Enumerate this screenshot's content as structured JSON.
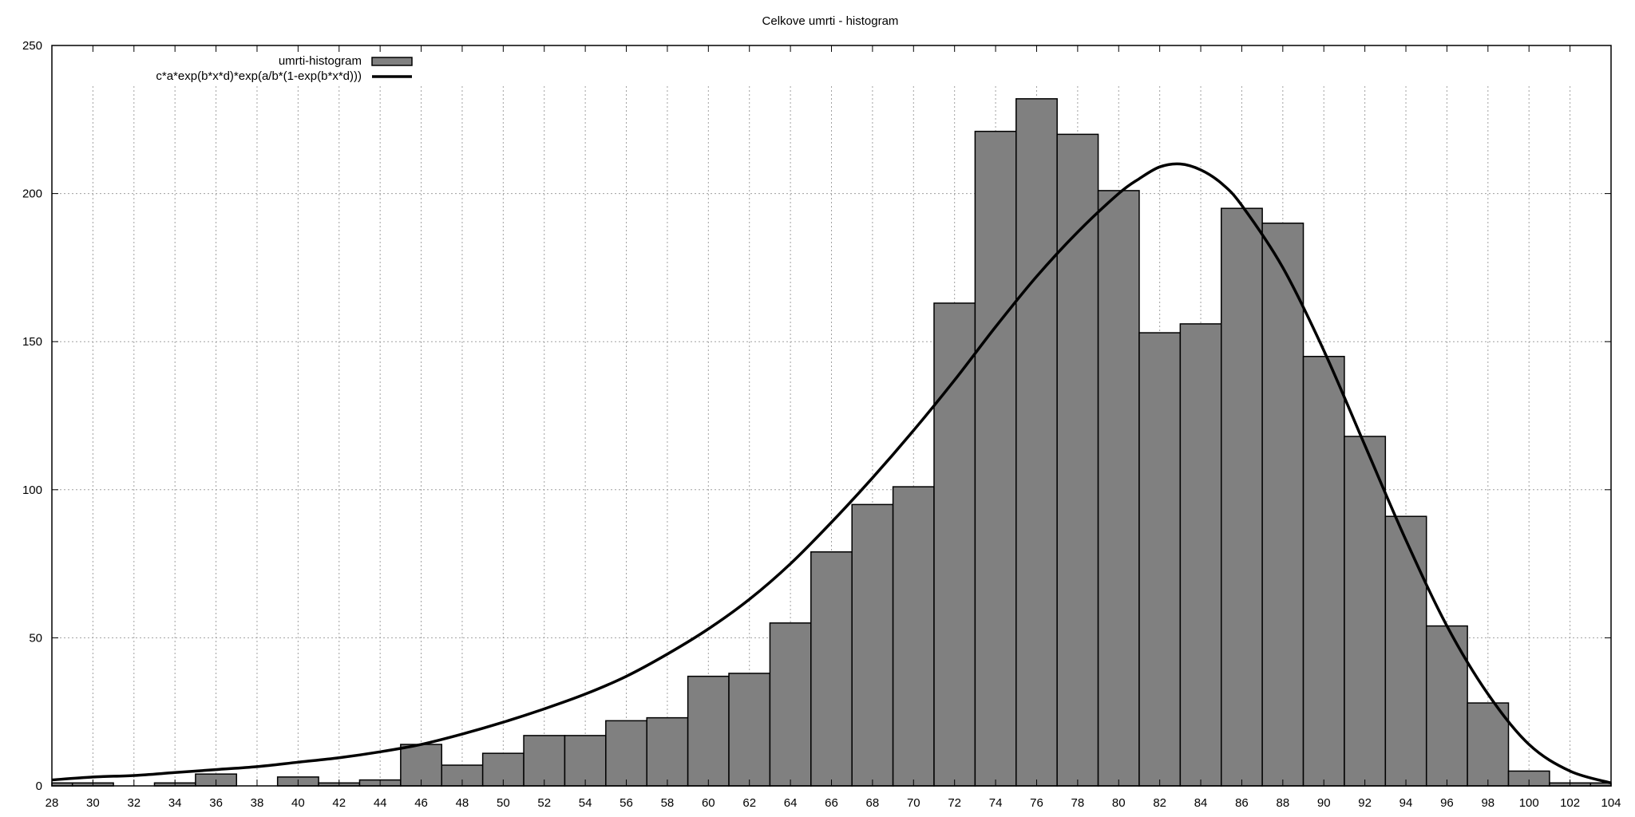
{
  "chart_data": {
    "type": "bar",
    "title": "Celkove umrti - histogram",
    "xlabel": "",
    "ylabel": "",
    "xlim": [
      28,
      104
    ],
    "ylim": [
      0,
      250
    ],
    "grid": true,
    "legend_position": "top-left",
    "x_ticks": [
      "28",
      "30",
      "32",
      "34",
      "36",
      "38",
      "40",
      "42",
      "44",
      "46",
      "48",
      "50",
      "52",
      "54",
      "56",
      "58",
      "60",
      "62",
      "64",
      "66",
      "68",
      "70",
      "72",
      "74",
      "76",
      "78",
      "80",
      "82",
      "84",
      "86",
      "88",
      "90",
      "92",
      "94",
      "96",
      "98",
      "100",
      "102",
      "104"
    ],
    "y_ticks": [
      "0",
      "50",
      "100",
      "150",
      "200",
      "250"
    ],
    "bin_width": 2,
    "series": [
      {
        "name": "umrti-histogram",
        "kind": "histogram",
        "color": "#808080",
        "bins": [
          {
            "center": 28,
            "value": 1
          },
          {
            "center": 30,
            "value": 1
          },
          {
            "center": 32,
            "value": 0
          },
          {
            "center": 34,
            "value": 1
          },
          {
            "center": 36,
            "value": 4
          },
          {
            "center": 38,
            "value": 0
          },
          {
            "center": 40,
            "value": 3
          },
          {
            "center": 42,
            "value": 1
          },
          {
            "center": 44,
            "value": 2
          },
          {
            "center": 46,
            "value": 14
          },
          {
            "center": 48,
            "value": 7
          },
          {
            "center": 50,
            "value": 11
          },
          {
            "center": 52,
            "value": 17
          },
          {
            "center": 54,
            "value": 17
          },
          {
            "center": 56,
            "value": 22
          },
          {
            "center": 58,
            "value": 23
          },
          {
            "center": 60,
            "value": 37
          },
          {
            "center": 62,
            "value": 38
          },
          {
            "center": 64,
            "value": 55
          },
          {
            "center": 66,
            "value": 79
          },
          {
            "center": 68,
            "value": 95
          },
          {
            "center": 70,
            "value": 101
          },
          {
            "center": 72,
            "value": 163
          },
          {
            "center": 74,
            "value": 221
          },
          {
            "center": 76,
            "value": 232
          },
          {
            "center": 78,
            "value": 220
          },
          {
            "center": 80,
            "value": 201
          },
          {
            "center": 82,
            "value": 153
          },
          {
            "center": 84,
            "value": 156
          },
          {
            "center": 86,
            "value": 195
          },
          {
            "center": 88,
            "value": 190
          },
          {
            "center": 90,
            "value": 145
          },
          {
            "center": 92,
            "value": 118
          },
          {
            "center": 94,
            "value": 91
          },
          {
            "center": 96,
            "value": 54
          },
          {
            "center": 98,
            "value": 28
          },
          {
            "center": 100,
            "value": 5
          },
          {
            "center": 102,
            "value": 1
          },
          {
            "center": 104,
            "value": 1
          }
        ]
      },
      {
        "name": "c*a*exp(b*x*d)*exp(a/b*(1-exp(b*x*d)))",
        "kind": "line",
        "color": "#000000",
        "points": [
          [
            28,
            2
          ],
          [
            30,
            3
          ],
          [
            32,
            3.5
          ],
          [
            34,
            4.5
          ],
          [
            36,
            5.5
          ],
          [
            38,
            6.5
          ],
          [
            40,
            8
          ],
          [
            42,
            9.5
          ],
          [
            44,
            11.5
          ],
          [
            46,
            14
          ],
          [
            48,
            17.5
          ],
          [
            50,
            21.5
          ],
          [
            52,
            26
          ],
          [
            54,
            31
          ],
          [
            56,
            37
          ],
          [
            58,
            44.5
          ],
          [
            60,
            53
          ],
          [
            62,
            63
          ],
          [
            64,
            75
          ],
          [
            66,
            89
          ],
          [
            68,
            104
          ],
          [
            70,
            120
          ],
          [
            72,
            137
          ],
          [
            74,
            155
          ],
          [
            76,
            172
          ],
          [
            78,
            187
          ],
          [
            80,
            200
          ],
          [
            81,
            205
          ],
          [
            82,
            209
          ],
          [
            83,
            210
          ],
          [
            84,
            208
          ],
          [
            85,
            203.5
          ],
          [
            86,
            196
          ],
          [
            88,
            175
          ],
          [
            90,
            147
          ],
          [
            92,
            115
          ],
          [
            94,
            83
          ],
          [
            96,
            54
          ],
          [
            98,
            31
          ],
          [
            100,
            14
          ],
          [
            102,
            5
          ],
          [
            104,
            1
          ]
        ]
      }
    ]
  }
}
